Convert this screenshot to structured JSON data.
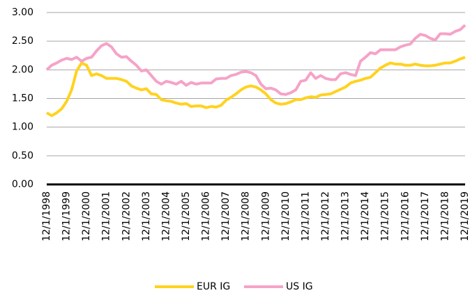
{
  "chart_data": {
    "type": "line",
    "categories": [
      "12/1/1998",
      null,
      null,
      null,
      "12/1/1999",
      null,
      null,
      null,
      "12/1/2000",
      null,
      null,
      null,
      "12/1/2001",
      null,
      null,
      null,
      "12/1/2002",
      null,
      null,
      null,
      "12/1/2003",
      null,
      null,
      null,
      "12/1/2004",
      null,
      null,
      null,
      "12/1/2005",
      null,
      null,
      null,
      "12/1/2006",
      null,
      null,
      null,
      "12/1/2007",
      null,
      null,
      null,
      "12/1/2008",
      null,
      null,
      null,
      "12/1/2009",
      null,
      null,
      null,
      "12/1/2010",
      null,
      null,
      null,
      "12/1/2011",
      null,
      null,
      null,
      "12/1/2012",
      null,
      null,
      null,
      "12/1/2013",
      null,
      null,
      null,
      "12/1/2014",
      null,
      null,
      null,
      "12/1/2015",
      null,
      null,
      null,
      "12/1/2016",
      null,
      null,
      null,
      "12/1/2017",
      null,
      null,
      null,
      "12/1/2018",
      null,
      null,
      null,
      "12/1/2019"
    ],
    "series": [
      {
        "name": "EUR IG",
        "color": "#FFD21F",
        "values": [
          1.25,
          1.2,
          1.25,
          1.32,
          1.45,
          1.65,
          1.98,
          2.12,
          2.08,
          1.9,
          1.93,
          1.9,
          1.85,
          1.85,
          1.85,
          1.83,
          1.8,
          1.72,
          1.68,
          1.65,
          1.67,
          1.58,
          1.57,
          1.48,
          1.46,
          1.45,
          1.42,
          1.4,
          1.41,
          1.36,
          1.37,
          1.37,
          1.34,
          1.36,
          1.35,
          1.38,
          1.47,
          1.52,
          1.58,
          1.65,
          1.7,
          1.72,
          1.7,
          1.65,
          1.58,
          1.48,
          1.42,
          1.4,
          1.41,
          1.44,
          1.48,
          1.48,
          1.51,
          1.53,
          1.52,
          1.56,
          1.57,
          1.58,
          1.62,
          1.66,
          1.7,
          1.77,
          1.8,
          1.82,
          1.85,
          1.87,
          1.95,
          2.03,
          2.08,
          2.12,
          2.1,
          2.1,
          2.08,
          2.08,
          2.1,
          2.08,
          2.07,
          2.07,
          2.08,
          2.1,
          2.12,
          2.12,
          2.15,
          2.19,
          2.22
        ]
      },
      {
        "name": "US IG",
        "color": "#F5A3C7",
        "values": [
          2.0,
          2.08,
          2.12,
          2.17,
          2.2,
          2.18,
          2.22,
          2.15,
          2.2,
          2.22,
          2.33,
          2.42,
          2.46,
          2.4,
          2.28,
          2.22,
          2.23,
          2.15,
          2.08,
          1.98,
          2.0,
          1.9,
          1.8,
          1.75,
          1.8,
          1.78,
          1.75,
          1.8,
          1.73,
          1.78,
          1.75,
          1.77,
          1.77,
          1.77,
          1.84,
          1.85,
          1.85,
          1.9,
          1.92,
          1.96,
          1.97,
          1.95,
          1.9,
          1.75,
          1.67,
          1.68,
          1.65,
          1.58,
          1.57,
          1.6,
          1.65,
          1.8,
          1.82,
          1.95,
          1.85,
          1.9,
          1.85,
          1.83,
          1.83,
          1.93,
          1.95,
          1.92,
          1.9,
          2.15,
          2.22,
          2.3,
          2.28,
          2.35,
          2.35,
          2.35,
          2.35,
          2.4,
          2.43,
          2.45,
          2.55,
          2.62,
          2.6,
          2.55,
          2.52,
          2.63,
          2.63,
          2.62,
          2.67,
          2.7,
          2.78
        ]
      }
    ],
    "ylim": [
      0,
      3
    ],
    "yticks": [
      {
        "value": 0,
        "label": "0.00"
      },
      {
        "value": 0.5,
        "label": "0.50"
      },
      {
        "value": 1,
        "label": "1.00"
      },
      {
        "value": 1.5,
        "label": "1.50"
      },
      {
        "value": 2,
        "label": "2.00"
      },
      {
        "value": 2.5,
        "label": "2.50"
      },
      {
        "value": 3,
        "label": "3.00"
      }
    ],
    "grid": true,
    "legend": "bottom"
  }
}
